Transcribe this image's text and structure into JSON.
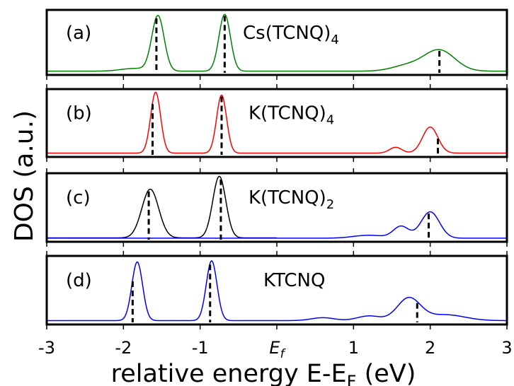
{
  "figure": {
    "ylabel": "DOS (a.u.)",
    "xlabel_main": "relative energy E-E",
    "xlabel_sub": "F",
    "xlabel_unit": " (eV)"
  },
  "chart_data": {
    "type": "line",
    "xlim": [
      -3,
      3
    ],
    "x_ticks": [
      {
        "value": -3,
        "label": "-3"
      },
      {
        "value": -2,
        "label": "-2"
      },
      {
        "value": -1,
        "label": "-1"
      },
      {
        "value": 0,
        "label": "E",
        "sub": "f"
      },
      {
        "value": 1,
        "label": "1"
      },
      {
        "value": 2,
        "label": "2"
      },
      {
        "value": 3,
        "label": "3"
      }
    ],
    "grid": false,
    "panels": [
      {
        "tag": "(a)",
        "formula": "Cs(TCNQ)",
        "formula_sub": "4",
        "series": [
          {
            "color": "#008000",
            "peaks": [
              [
                -1.55,
                1.0,
                0.08
              ],
              [
                -0.68,
                1.03,
                0.075
              ],
              [
                1.7,
                0.1,
                0.2
              ],
              [
                2.12,
                0.38,
                0.2
              ],
              [
                -1.85,
                0.05,
                0.18
              ]
            ],
            "baseline": 0.03
          }
        ],
        "markers": [
          -1.57,
          -0.68,
          2.12
        ]
      },
      {
        "tag": "(b)",
        "formula": "K(TCNQ)",
        "formula_sub": "4",
        "series": [
          {
            "color": "#ff0000",
            "peaks": [
              [
                -1.58,
                1.05,
                0.065
              ],
              [
                -0.72,
                1.0,
                0.065
              ],
              [
                1.55,
                0.1,
                0.08
              ],
              [
                2.0,
                0.45,
                0.1
              ]
            ],
            "baseline": 0.03
          }
        ],
        "markers": [
          -1.62,
          -0.72,
          2.1
        ]
      },
      {
        "tag": "(c)",
        "formula": "K(TCNQ)",
        "formula_sub": "2",
        "series": [
          {
            "color": "#000000",
            "range": [
              -3,
              0.0
            ],
            "peaks": [
              [
                -1.65,
                0.83,
                0.11
              ],
              [
                -0.75,
                1.05,
                0.085
              ]
            ],
            "baseline": 0.03
          },
          {
            "color": "#0000ff",
            "range": [
              -3,
              3
            ],
            "peaks": [
              [
                1.2,
                0.05,
                0.2
              ],
              [
                1.62,
                0.2,
                0.1
              ],
              [
                2.0,
                0.45,
                0.12
              ]
            ],
            "baseline": 0.025
          }
        ],
        "markers": [
          -1.67,
          -0.73,
          1.98
        ]
      },
      {
        "tag": "(d)",
        "formula": "KTCNQ",
        "formula_sub": "",
        "series": [
          {
            "color": "#0000ff",
            "peaks": [
              [
                -1.82,
                1.0,
                0.07
              ],
              [
                -0.85,
                1.02,
                0.07
              ],
              [
                0.6,
                0.05,
                0.15
              ],
              [
                1.2,
                0.08,
                0.15
              ],
              [
                1.72,
                0.38,
                0.15
              ],
              [
                2.2,
                0.1,
                0.25
              ]
            ],
            "baseline": 0.03
          }
        ],
        "markers": [
          -1.88,
          -0.87,
          1.83
        ]
      }
    ]
  }
}
